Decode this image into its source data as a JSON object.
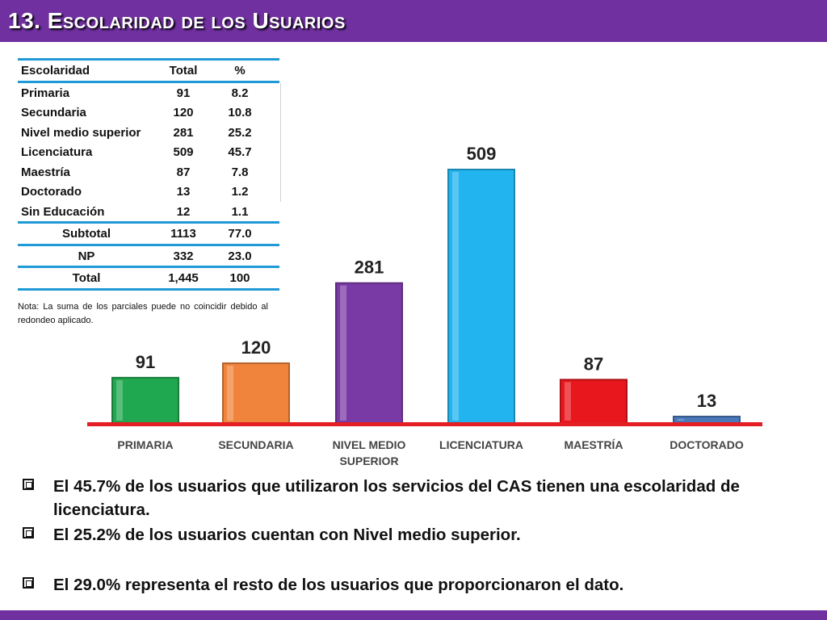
{
  "title": "13. Escolaridad de los Usuarios",
  "colors": {
    "header": "#7030a0",
    "table_rule": "#1f9ad6",
    "baseline": "#e31e24"
  },
  "table": {
    "headers": [
      "Escolaridad",
      "Total",
      "%"
    ],
    "rows": [
      [
        "Primaria",
        "91",
        "8.2"
      ],
      [
        "Secundaria",
        "120",
        "10.8"
      ],
      [
        "Nivel medio superior",
        "281",
        "25.2"
      ],
      [
        "Licenciatura",
        "509",
        "45.7"
      ],
      [
        "Maestría",
        "87",
        "7.8"
      ],
      [
        "Doctorado",
        "13",
        "1.2"
      ],
      [
        "Sin Educación",
        "12",
        "1.1"
      ]
    ],
    "subtotal": [
      "Subtotal",
      "1113",
      "77.0"
    ],
    "np": [
      "NP",
      "332",
      "23.0"
    ],
    "total": [
      "Total",
      "1,445",
      "100"
    ]
  },
  "note": "Nota: La suma de los parciales puede no coincidir debido al redondeo aplicado.",
  "chart_data": {
    "type": "bar",
    "categories": [
      "PRIMARIA",
      "SECUNDARIA",
      "NIVEL MEDIO SUPERIOR",
      "LICENCIATURA",
      "MAESTRÍA",
      "DOCTORADO"
    ],
    "values": [
      91,
      120,
      281,
      509,
      87,
      13
    ],
    "data_labels": [
      "91",
      "120",
      "281",
      "509",
      "87",
      "13"
    ],
    "bar_colors": [
      "#1fa84f",
      "#f0843c",
      "#7a3aa6",
      "#22b4ef",
      "#e8161d",
      "#4a78b8"
    ],
    "ylim": [
      0,
      509
    ],
    "grid": false,
    "legend": "none"
  },
  "bullets": [
    "El 45.7% de los usuarios que utilizaron los servicios del CAS tienen una escolaridad de licenciatura.",
    "El 25.2% de los usuarios cuentan con Nivel medio superior.",
    "El  29.0% representa el resto de los usuarios que proporcionaron el dato."
  ]
}
